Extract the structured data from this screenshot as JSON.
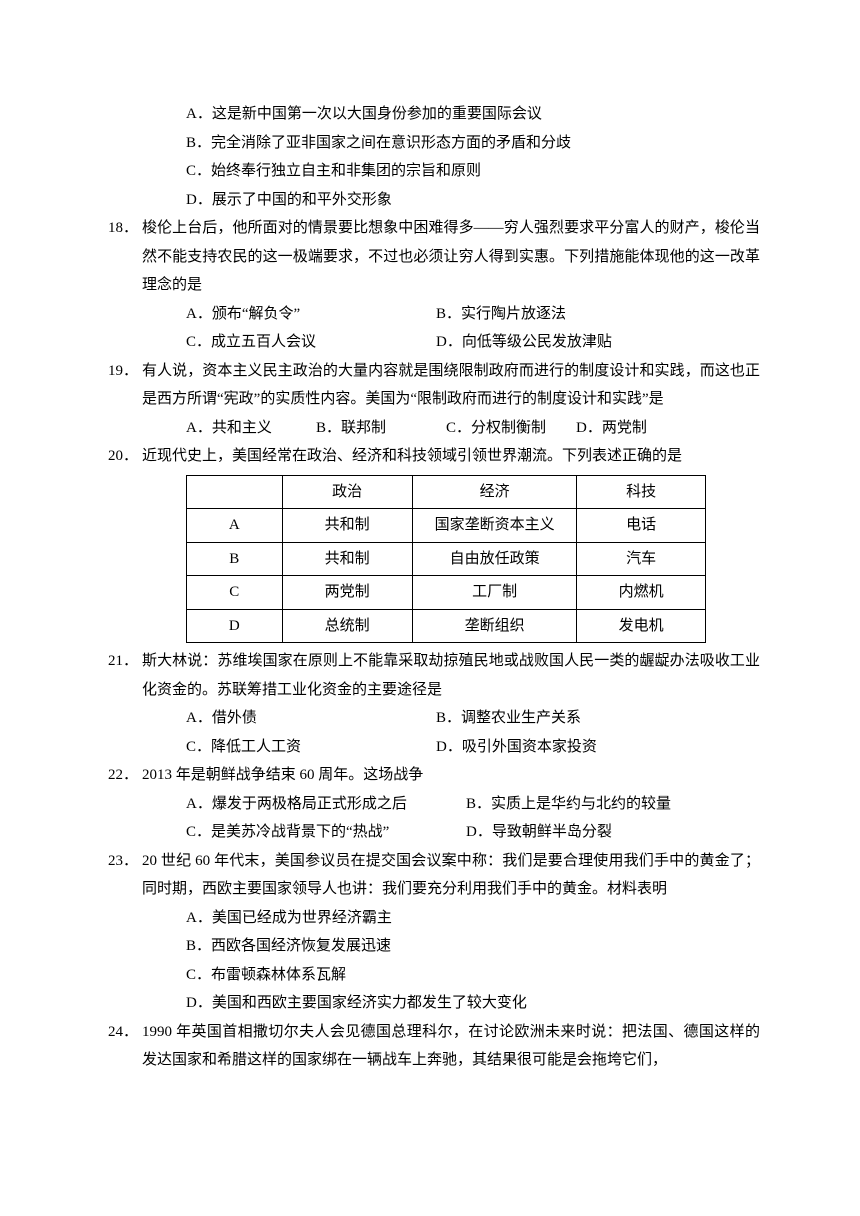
{
  "q17": {
    "optA": "A．这是新中国第一次以大国身份参加的重要国际会议",
    "optB": "B．完全消除了亚非国家之间在意识形态方面的矛盾和分歧",
    "optC": "C．始终奉行独立自主和非集团的宗旨和原则",
    "optD": "D．展示了中国的和平外交形象"
  },
  "q18": {
    "num": "18．",
    "stem": "梭伦上台后，他所面对的情景要比想象中困难得多——穷人强烈要求平分富人的财产，梭伦当然不能支持农民的这一极端要求，不过也必须让穷人得到实惠。下列措施能体现他的这一改革理念的是",
    "optA": "A．颁布“解负令”",
    "optB": "B．实行陶片放逐法",
    "optC": "C．成立五百人会议",
    "optD": "D．向低等级公民发放津贴"
  },
  "q19": {
    "num": "19．",
    "stem": "有人说，资本主义民主政治的大量内容就是围绕限制政府而进行的制度设计和实践，而这也正是西方所谓“宪政”的实质性内容。美国为“限制政府而进行的制度设计和实践”是",
    "optA": "A．共和主义",
    "optB": "B．联邦制",
    "optC": "C．分权制衡制",
    "optD": "D．两党制"
  },
  "q20": {
    "num": "20．",
    "stem": "近现代史上，美国经常在政治、经济和科技领域引领世界潮流。下列表述正确的是",
    "table": {
      "headers": [
        "",
        "政治",
        "经济",
        "科技"
      ],
      "rows": [
        [
          "A",
          "共和制",
          "国家垄断资本主义",
          "电话"
        ],
        [
          "B",
          "共和制",
          "自由放任政策",
          "汽车"
        ],
        [
          "C",
          "两党制",
          "工厂制",
          "内燃机"
        ],
        [
          "D",
          "总统制",
          "垄断组织",
          "发电机"
        ]
      ],
      "col_widths": [
        "90px",
        "130px",
        "170px",
        "128px"
      ]
    }
  },
  "q21": {
    "num": "21．",
    "stem": "斯大林说：苏维埃国家在原则上不能靠采取劫掠殖民地或战败国人民一类的龌龊办法吸收工业化资金的。苏联筹措工业化资金的主要途径是",
    "optA": "A．借外债",
    "optB": "B．调整农业生产关系",
    "optC": "C．降低工人工资",
    "optD": "D．吸引外国资本家投资"
  },
  "q22": {
    "num": "22．",
    "stem": "2013 年是朝鲜战争结束 60 周年。这场战争",
    "optA": "A．爆发于两极格局正式形成之后",
    "optB": "B．实质上是华约与北约的较量",
    "optC": "C．是美苏冷战背景下的“热战”",
    "optD": "D．导致朝鲜半岛分裂"
  },
  "q23": {
    "num": "23．",
    "stem": "20 世纪 60 年代末，美国参议员在提交国会议案中称：我们是要合理使用我们手中的黄金了；同时期，西欧主要国家领导人也讲：我们要充分利用我们手中的黄金。材料表明",
    "optA": "A．美国已经成为世界经济霸主",
    "optB": "B．西欧各国经济恢复发展迅速",
    "optC": "C．布雷顿森林体系瓦解",
    "optD": "D．美国和西欧主要国家经济实力都发生了较大变化"
  },
  "q24": {
    "num": "24．",
    "stem": "1990 年英国首相撒切尔夫人会见德国总理科尔，在讨论欧洲未来时说：把法国、德国这样的发达国家和希腊这样的国家绑在一辆战车上奔驰，其结果很可能是会拖垮它们，"
  }
}
